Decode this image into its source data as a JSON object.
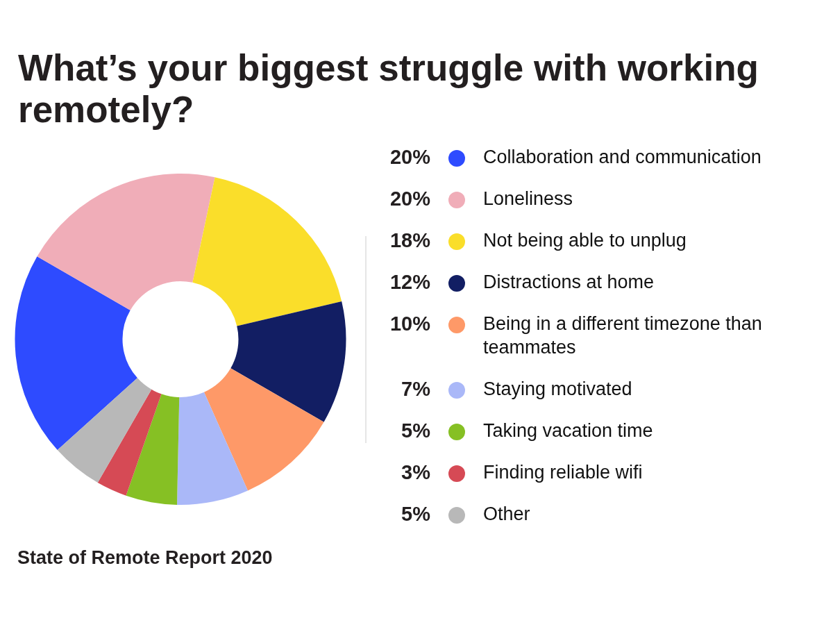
{
  "chart_data": {
    "type": "donut",
    "title": "What’s your biggest struggle with working remotely?",
    "categories": [
      "Collaboration and communication",
      "Loneliness",
      "Not being able to unplug",
      "Distractions at home",
      "Being in a different timezone than teammates",
      "Staying motivated",
      "Taking vacation time",
      "Finding reliable wifi",
      "Other"
    ],
    "values": [
      20,
      20,
      18,
      12,
      10,
      7,
      5,
      3,
      5
    ],
    "colors": [
      "#2e4bff",
      "#f0adb8",
      "#fade2a",
      "#121e63",
      "#fe9968",
      "#aab8f8",
      "#86c024",
      "#d64a55",
      "#b8b8b8"
    ],
    "value_labels": [
      "20%",
      "20%",
      "18%",
      "12%",
      "10%",
      "7%",
      "5%",
      "3%",
      "5%"
    ],
    "legend": "right",
    "annotations": [
      "State of Remote Report 2020"
    ]
  }
}
